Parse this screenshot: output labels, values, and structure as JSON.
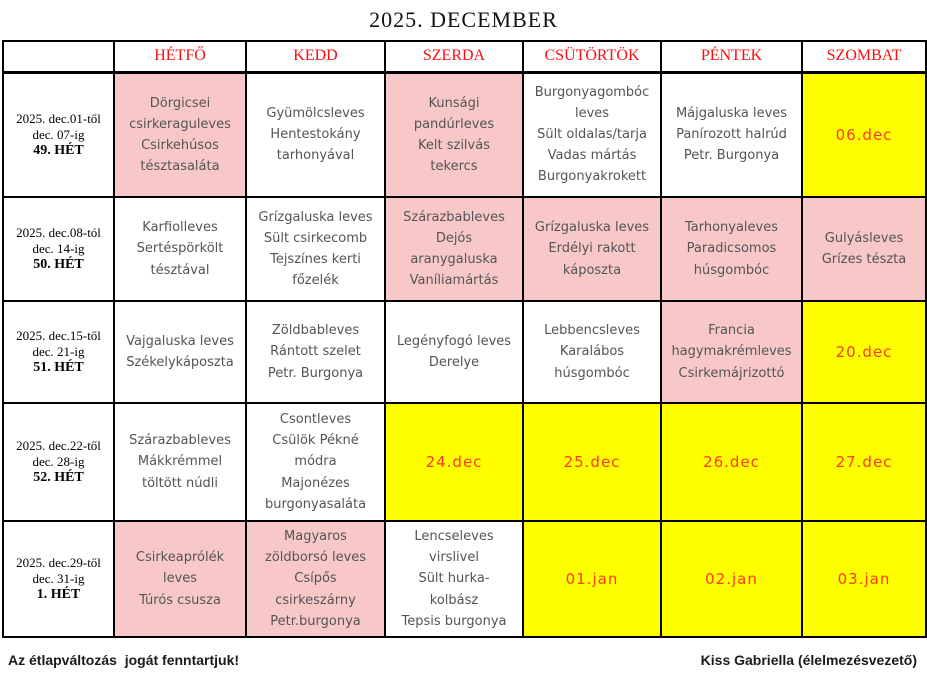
{
  "title": "2025. DECEMBER",
  "colors": {
    "pink": "#f8c8c9",
    "yellow": "#ffff00",
    "day_header_red": "#fd0d0d",
    "date_red": "#ff3a14",
    "menu_text_gray": "#545454"
  },
  "days": [
    "HÉTFŐ",
    "KEDD",
    "SZERDA",
    "CSÜTÖRTÖK",
    "PÉNTEK",
    "SZOMBAT"
  ],
  "weeks": [
    {
      "label_lines": [
        "2025. dec.01-től",
        "dec. 07-ig",
        "49. HÉT"
      ],
      "cells": [
        {
          "bg": "pink",
          "date": false,
          "lines": [
            "Dörgicsei",
            "csirkeraguleves",
            "Csirkehúsos",
            "tésztasaláta"
          ]
        },
        {
          "bg": "white",
          "date": false,
          "lines": [
            "Gyümölcsleves",
            "Hentestokány",
            "tarhonyával"
          ]
        },
        {
          "bg": "pink",
          "date": false,
          "lines": [
            "Kunsági",
            "pandúrleves",
            "Kelt szilvás",
            "tekercs"
          ]
        },
        {
          "bg": "white",
          "date": false,
          "lines": [
            "Burgonyagombóc",
            "leves",
            "Sült oldalas/tarja",
            "Vadas mártás",
            "Burgonyakrokett"
          ]
        },
        {
          "bg": "white",
          "date": false,
          "lines": [
            "Májgaluska leves",
            "Panírozott halrúd",
            "Petr. Burgonya"
          ]
        },
        {
          "bg": "yellow",
          "date": true,
          "lines": [
            "06.dec"
          ]
        }
      ]
    },
    {
      "label_lines": [
        "2025. dec.08-tól",
        "dec. 14-ig",
        "50. HÉT"
      ],
      "cells": [
        {
          "bg": "white",
          "date": false,
          "lines": [
            "Karfiolleves",
            "Sertéspörkölt",
            "tésztával"
          ]
        },
        {
          "bg": "white",
          "date": false,
          "lines": [
            "Grízgaluska leves",
            "Sült csirkecomb",
            "Tejszínes kerti",
            "főzelék"
          ]
        },
        {
          "bg": "pink",
          "date": false,
          "lines": [
            "Szárazbableves",
            "Dejós",
            "aranygaluska",
            "Vaníliamártás"
          ]
        },
        {
          "bg": "pink",
          "date": false,
          "lines": [
            "Grízgaluska leves",
            "Erdélyi rakott",
            "káposzta"
          ]
        },
        {
          "bg": "pink",
          "date": false,
          "lines": [
            "Tarhonyaleves",
            "Paradicsomos",
            "húsgombóc"
          ]
        },
        {
          "bg": "pink",
          "date": false,
          "lines": [
            "Gulyásleves",
            "Grízes tészta"
          ]
        }
      ]
    },
    {
      "label_lines": [
        "2025. dec.15-től",
        "dec. 21-ig",
        "51. HÉT"
      ],
      "cells": [
        {
          "bg": "white",
          "date": false,
          "lines": [
            "Vajgaluska leves",
            "Székelykáposzta"
          ]
        },
        {
          "bg": "white",
          "date": false,
          "lines": [
            "Zöldbableves",
            "Rántott szelet",
            "Petr. Burgonya"
          ]
        },
        {
          "bg": "white",
          "date": false,
          "lines": [
            "Legényfogó leves",
            "Derelye"
          ]
        },
        {
          "bg": "white",
          "date": false,
          "lines": [
            "Lebbencsleves",
            "Karalábos",
            "húsgombóc"
          ]
        },
        {
          "bg": "pink",
          "date": false,
          "lines": [
            "Francia",
            "hagymakrémleves",
            "Csirkemájrizottó"
          ]
        },
        {
          "bg": "yellow",
          "date": true,
          "lines": [
            "20.dec"
          ]
        }
      ]
    },
    {
      "label_lines": [
        "2025. dec.22-től",
        "dec. 28-ig",
        "52. HÉT"
      ],
      "cells": [
        {
          "bg": "white",
          "date": false,
          "lines": [
            "Szárazbableves",
            "Mákkrémmel",
            "töltött núdli"
          ]
        },
        {
          "bg": "white",
          "date": false,
          "lines": [
            "Csontleves",
            "Csülök Pékné",
            "módra",
            "Majonézes",
            "burgonyasaláta"
          ]
        },
        {
          "bg": "yellow",
          "date": true,
          "lines": [
            "24.dec"
          ]
        },
        {
          "bg": "yellow",
          "date": true,
          "lines": [
            "25.dec"
          ]
        },
        {
          "bg": "yellow",
          "date": true,
          "lines": [
            "26.dec"
          ]
        },
        {
          "bg": "yellow",
          "date": true,
          "lines": [
            "27.dec"
          ]
        }
      ]
    },
    {
      "label_lines": [
        "2025. dec.29-től",
        "dec. 31-ig",
        "1. HÉT"
      ],
      "cells": [
        {
          "bg": "pink",
          "date": false,
          "lines": [
            "Csirkeaprólék",
            "leves",
            "Túrós csusza"
          ]
        },
        {
          "bg": "pink",
          "date": false,
          "lines": [
            "Magyaros",
            "zöldborsó leves",
            "Csípős",
            "csirkeszárny",
            "Petr.burgonya"
          ]
        },
        {
          "bg": "white",
          "date": false,
          "lines": [
            "Lencseleves",
            "virslivel",
            "Sült hurka-",
            "kolbász",
            "Tepsis burgonya"
          ]
        },
        {
          "bg": "yellow",
          "date": true,
          "lines": [
            "01.jan"
          ]
        },
        {
          "bg": "yellow",
          "date": true,
          "lines": [
            "02.jan"
          ]
        },
        {
          "bg": "yellow",
          "date": true,
          "lines": [
            "03.jan"
          ]
        }
      ]
    }
  ],
  "footer": {
    "left": "Az étlapváltozás  jogát fenntartjuk!",
    "right": "Kiss Gabriella (élelmezésvezető)"
  }
}
